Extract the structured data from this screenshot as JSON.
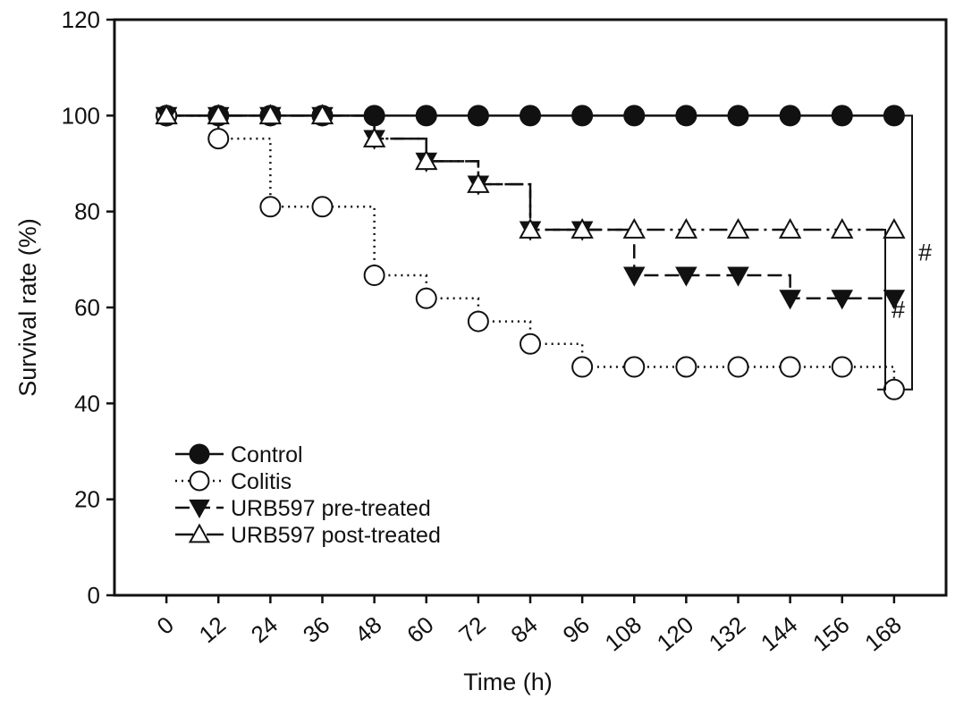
{
  "chart_data": {
    "type": "line",
    "step": true,
    "title": "",
    "xlabel": "Time (h)",
    "ylabel": "Survival rate (%)",
    "x": [
      0,
      12,
      24,
      36,
      48,
      60,
      72,
      84,
      96,
      108,
      120,
      132,
      144,
      156,
      168
    ],
    "x_ticks": [
      "0",
      "12",
      "24",
      "36",
      "48",
      "60",
      "72",
      "84",
      "96",
      "108",
      "120",
      "132",
      "144",
      "156",
      "168"
    ],
    "y_ticks": [
      "0",
      "20",
      "40",
      "60",
      "80",
      "100",
      "120"
    ],
    "xlim": [
      -12,
      180
    ],
    "ylim": [
      0,
      120
    ],
    "grid": false,
    "legend_position": "bottom-left",
    "series": [
      {
        "name": "Control",
        "marker": "filled-circle",
        "line": "solid",
        "values": [
          100,
          100,
          100,
          100,
          100,
          100,
          100,
          100,
          100,
          100,
          100,
          100,
          100,
          100,
          100
        ]
      },
      {
        "name": "Colitis",
        "marker": "open-circle",
        "line": "dotted",
        "values": [
          100,
          95.2,
          81,
          81,
          66.7,
          61.9,
          57.1,
          52.4,
          47.6,
          47.6,
          47.6,
          47.6,
          47.6,
          47.6,
          42.9
        ]
      },
      {
        "name": "URB597 pre-treated",
        "marker": "filled-triangle-down",
        "line": "dashed",
        "values": [
          100,
          100,
          100,
          100,
          95.2,
          90.5,
          85.7,
          76.2,
          76.2,
          66.7,
          66.7,
          66.7,
          61.9,
          61.9,
          61.9
        ]
      },
      {
        "name": "URB597 post-treated",
        "marker": "open-triangle-up",
        "line": "dash-dot",
        "values": [
          100,
          100,
          100,
          100,
          95.2,
          90.5,
          85.7,
          76.2,
          76.2,
          76.2,
          76.2,
          76.2,
          76.2,
          76.2,
          76.2
        ]
      }
    ],
    "annotations": [
      {
        "label": "#",
        "from_y": 42.9,
        "to_y": 76.2
      },
      {
        "label": "#",
        "from_y": 42.9,
        "to_y": 100
      }
    ]
  }
}
